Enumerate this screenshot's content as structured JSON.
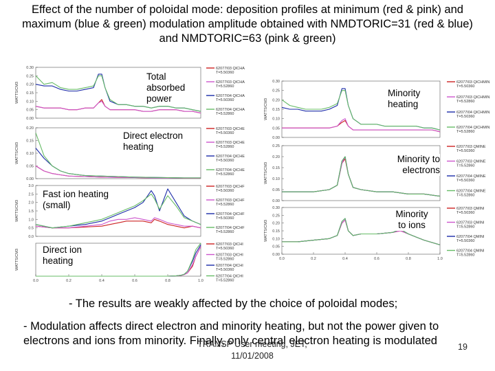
{
  "title": "Effect of the number of poloidal mode: deposition profiles at minimum (red & pink) and maximum (blue & green) modulation amplitude obtained with NMDTORIC=31 (red & blue) and NMDTORIC=63 (pink & green)",
  "bullets": {
    "first": "- The results are weakly affected by the choice of poloidal modes;",
    "second": "- Modulation affects direct electron and minority heating, but not the power given to electrons and ions from minority. Finally, only central electron heating is modulated"
  },
  "footer": {
    "line1": "TRANSP User meeting, JET,",
    "line2": "11/01/2008",
    "page": "19"
  },
  "colors": {
    "red": "#cc2222",
    "pink": "#cc55cc",
    "blue": "#1a2aa8",
    "green": "#66bb66"
  },
  "chart_data": [
    {
      "type": "line",
      "label": "Total absorbed power",
      "ylabel": "WATTS/CM3",
      "ylim": [
        0,
        0.3
      ],
      "yticks": [
        "0.30",
        "0.25",
        "0.20",
        "0.15",
        "0.10",
        "0.05",
        "0.00"
      ],
      "xlim": [
        0,
        1
      ],
      "legend": [
        {
          "name": "62077I03 QICHA",
          "t": "T=5.50360"
        },
        {
          "name": "62077I03 QICHA",
          "t": "T=5.52860"
        },
        {
          "name": "62077I04 QICHA",
          "t": "T=5.50360"
        },
        {
          "name": "62077I04 QICHA",
          "t": "T=5.52860"
        }
      ],
      "x": [
        0,
        0.05,
        0.1,
        0.15,
        0.2,
        0.25,
        0.3,
        0.35,
        0.38,
        0.4,
        0.42,
        0.45,
        0.5,
        0.55,
        0.6,
        0.65,
        0.7,
        0.75,
        0.8,
        0.85,
        0.9,
        0.95,
        1.0
      ],
      "series": [
        {
          "color": "red",
          "values": [
            0.07,
            0.06,
            0.06,
            0.06,
            0.05,
            0.05,
            0.06,
            0.06,
            0.09,
            0.11,
            0.07,
            0.05,
            0.05,
            0.05,
            0.05,
            0.04,
            0.04,
            0.05,
            0.05,
            0.05,
            0.04,
            0.04,
            0.03
          ]
        },
        {
          "color": "pink",
          "values": [
            0.07,
            0.06,
            0.06,
            0.06,
            0.05,
            0.05,
            0.06,
            0.06,
            0.09,
            0.1,
            0.07,
            0.05,
            0.05,
            0.05,
            0.05,
            0.04,
            0.04,
            0.05,
            0.05,
            0.05,
            0.04,
            0.04,
            0.03
          ]
        },
        {
          "color": "blue",
          "values": [
            0.2,
            0.19,
            0.19,
            0.17,
            0.16,
            0.16,
            0.17,
            0.18,
            0.26,
            0.26,
            0.18,
            0.1,
            0.08,
            0.08,
            0.07,
            0.07,
            0.06,
            0.07,
            0.07,
            0.06,
            0.06,
            0.05,
            0.04
          ]
        },
        {
          "color": "green",
          "values": [
            0.25,
            0.2,
            0.21,
            0.18,
            0.17,
            0.17,
            0.18,
            0.19,
            0.25,
            0.25,
            0.18,
            0.11,
            0.08,
            0.08,
            0.07,
            0.07,
            0.06,
            0.07,
            0.07,
            0.06,
            0.06,
            0.05,
            0.04
          ]
        }
      ]
    },
    {
      "type": "line",
      "label": "Direct electron heating",
      "ylabel": "WATTS/CM3",
      "ylim": [
        0,
        0.2
      ],
      "yticks": [
        "0.20",
        "0.15",
        "0.10",
        "0.05",
        "0.00"
      ],
      "xlim": [
        0,
        1
      ],
      "legend": [
        {
          "name": "62077I03 QICHE",
          "t": "T=5.50360"
        },
        {
          "name": "62077I03 QICHE",
          "t": "T=5.52860"
        },
        {
          "name": "62077I04 QICHE",
          "t": "T=5.50360"
        },
        {
          "name": "62077I04 QICHE",
          "t": "T=5.52860"
        }
      ],
      "x": [
        0,
        0.05,
        0.1,
        0.15,
        0.2,
        0.3,
        0.4,
        0.5,
        0.6,
        0.7,
        0.8,
        0.9,
        1.0
      ],
      "series": [
        {
          "color": "red",
          "values": [
            0.05,
            0.03,
            0.02,
            0.015,
            0.01,
            0.008,
            0.006,
            0.005,
            0.004,
            0.003,
            0.003,
            0.002,
            0.002
          ]
        },
        {
          "color": "pink",
          "values": [
            0.05,
            0.03,
            0.02,
            0.015,
            0.01,
            0.008,
            0.006,
            0.005,
            0.004,
            0.003,
            0.003,
            0.002,
            0.002
          ]
        },
        {
          "color": "blue",
          "values": [
            0.12,
            0.08,
            0.05,
            0.03,
            0.02,
            0.012,
            0.01,
            0.008,
            0.006,
            0.005,
            0.004,
            0.003,
            0.003
          ]
        },
        {
          "color": "green",
          "values": [
            0.18,
            0.09,
            0.05,
            0.03,
            0.02,
            0.012,
            0.01,
            0.008,
            0.006,
            0.005,
            0.004,
            0.003,
            0.003
          ]
        }
      ]
    },
    {
      "type": "line",
      "label": "Fast ion heating (small)",
      "ylabel": "WATTS/CM3",
      "ylim": [
        0,
        3.0
      ],
      "yticks": [
        "3.0",
        "2.5",
        "2.0",
        "1.5",
        "1.0",
        "0.5",
        "0.0"
      ],
      "xlim": [
        0,
        1
      ],
      "legend": [
        {
          "name": "62077I03 QICHF",
          "t": "T=5.50360"
        },
        {
          "name": "62077I03 QICHF",
          "t": "T=5.52860"
        },
        {
          "name": "62077I04 QICHF",
          "t": "T=5.50360"
        },
        {
          "name": "62077I04 QICHF",
          "t": "T=5.52860"
        }
      ],
      "x": [
        0,
        0.1,
        0.2,
        0.3,
        0.4,
        0.45,
        0.5,
        0.55,
        0.6,
        0.65,
        0.7,
        0.72,
        0.75,
        0.8,
        0.85,
        0.9,
        0.95,
        1.0
      ],
      "series": [
        {
          "color": "red",
          "values": [
            0.6,
            0.5,
            0.5,
            0.55,
            0.6,
            0.7,
            0.8,
            0.9,
            0.9,
            0.9,
            0.8,
            1.0,
            0.9,
            0.7,
            0.6,
            0.5,
            0.6,
            0.5
          ]
        },
        {
          "color": "pink",
          "values": [
            0.6,
            0.5,
            0.5,
            0.6,
            0.7,
            0.9,
            1.0,
            1.0,
            1.1,
            1.0,
            0.9,
            1.1,
            1.0,
            0.8,
            0.7,
            0.6,
            0.6,
            0.5
          ]
        },
        {
          "color": "blue",
          "values": [
            0.7,
            0.5,
            0.6,
            0.7,
            0.9,
            1.1,
            1.3,
            1.5,
            1.7,
            2.0,
            2.7,
            2.4,
            1.5,
            2.8,
            2.0,
            1.2,
            0.9,
            0.7
          ]
        },
        {
          "color": "green",
          "values": [
            0.7,
            0.5,
            0.6,
            0.8,
            1.0,
            1.2,
            1.4,
            1.6,
            1.8,
            2.1,
            2.5,
            2.2,
            1.6,
            2.4,
            1.8,
            1.1,
            0.9,
            0.7
          ]
        }
      ]
    },
    {
      "type": "line",
      "label": "Direct ion heating",
      "ylabel": "WATTS/CM3",
      "xlim": [
        0,
        1
      ],
      "xticks": [
        "0.0",
        "0.2",
        "0.4",
        "0.6",
        "0.8",
        "1.0"
      ],
      "legend": [
        {
          "name": "62077I03 QICHI",
          "t": "T=5.50360"
        },
        {
          "name": "62077I03 QICHI",
          "t": "T=5.52860"
        },
        {
          "name": "62077I04 QICHI",
          "t": "T=5.50360"
        },
        {
          "name": "62077I04 QICHI",
          "t": "T=5.52860"
        }
      ],
      "x": [
        0,
        0.2,
        0.4,
        0.6,
        0.7,
        0.8,
        0.85,
        0.88,
        0.9,
        0.92,
        0.95,
        0.97,
        1.0
      ],
      "series": [
        {
          "color": "red",
          "values": [
            0,
            0,
            0,
            0,
            0,
            0,
            0.01,
            0.02,
            0.05,
            0.1,
            0.3,
            0.6,
            0.9
          ]
        },
        {
          "color": "pink",
          "values": [
            0,
            0,
            0,
            0,
            0,
            0,
            0.01,
            0.02,
            0.05,
            0.1,
            0.35,
            0.6,
            0.9
          ]
        },
        {
          "color": "blue",
          "values": [
            0,
            0,
            0,
            0,
            0,
            0,
            0.01,
            0.03,
            0.06,
            0.15,
            0.45,
            0.7,
            0.95
          ]
        },
        {
          "color": "green",
          "values": [
            0,
            0,
            0,
            0,
            0,
            0,
            0.01,
            0.03,
            0.06,
            0.15,
            0.5,
            0.8,
            1.0
          ]
        }
      ]
    },
    {
      "type": "line",
      "label": "Minority heating",
      "ylabel": "WATTS/CM3",
      "ylim": [
        0,
        0.3
      ],
      "yticks": [
        "0.30",
        "0.25",
        "0.20",
        "0.15",
        "0.10",
        "0.05",
        "0.00"
      ],
      "xlim": [
        0,
        1
      ],
      "legend": [
        {
          "name": "62077I03 QICHMIN",
          "t": "T=5.50360"
        },
        {
          "name": "62077I03 QICHMIN",
          "t": "T=5.52860"
        },
        {
          "name": "62077I04 QICHMIN",
          "t": "T=5.50360"
        },
        {
          "name": "62077I04 QICHMIN",
          "t": "T=5.52860"
        }
      ],
      "x": [
        0,
        0.05,
        0.1,
        0.15,
        0.2,
        0.25,
        0.3,
        0.35,
        0.38,
        0.4,
        0.42,
        0.45,
        0.5,
        0.55,
        0.6,
        0.65,
        0.7,
        0.75,
        0.8,
        0.85,
        0.9,
        0.95,
        1.0
      ],
      "series": [
        {
          "color": "red",
          "values": [
            0.05,
            0.05,
            0.05,
            0.05,
            0.05,
            0.05,
            0.05,
            0.06,
            0.08,
            0.09,
            0.06,
            0.04,
            0.04,
            0.04,
            0.04,
            0.04,
            0.04,
            0.04,
            0.04,
            0.04,
            0.04,
            0.04,
            0.03
          ]
        },
        {
          "color": "pink",
          "values": [
            0.05,
            0.05,
            0.05,
            0.05,
            0.05,
            0.05,
            0.05,
            0.06,
            0.09,
            0.1,
            0.06,
            0.04,
            0.04,
            0.04,
            0.04,
            0.04,
            0.04,
            0.04,
            0.04,
            0.04,
            0.04,
            0.04,
            0.03
          ]
        },
        {
          "color": "blue",
          "values": [
            0.16,
            0.15,
            0.15,
            0.14,
            0.14,
            0.14,
            0.15,
            0.17,
            0.26,
            0.26,
            0.17,
            0.1,
            0.07,
            0.07,
            0.07,
            0.06,
            0.06,
            0.06,
            0.06,
            0.06,
            0.05,
            0.05,
            0.04
          ]
        },
        {
          "color": "green",
          "values": [
            0.2,
            0.17,
            0.16,
            0.15,
            0.15,
            0.15,
            0.16,
            0.18,
            0.25,
            0.25,
            0.17,
            0.1,
            0.07,
            0.07,
            0.07,
            0.06,
            0.06,
            0.06,
            0.06,
            0.06,
            0.05,
            0.05,
            0.04
          ]
        }
      ]
    },
    {
      "type": "line",
      "label": "Minority to electrons",
      "ylabel": "WATTS/CM3",
      "ylim": [
        0,
        0.25
      ],
      "yticks": [
        "0.25",
        "0.20",
        "0.15",
        "0.10",
        "0.05",
        "0.00"
      ],
      "xlim": [
        0,
        1
      ],
      "legend": [
        {
          "name": "62077I03 QMINE",
          "t": "T=5.50360"
        },
        {
          "name": "62077I03 QMINE",
          "t": "T=5.52860"
        },
        {
          "name": "62077I04 QMINE",
          "t": "T=5.50360"
        },
        {
          "name": "62077I04 QMINE",
          "t": "T=5.52860"
        }
      ],
      "x": [
        0,
        0.1,
        0.2,
        0.3,
        0.35,
        0.38,
        0.4,
        0.42,
        0.45,
        0.5,
        0.6,
        0.7,
        0.8,
        0.9,
        1.0
      ],
      "series": [
        {
          "color": "red",
          "values": [
            0.04,
            0.04,
            0.04,
            0.05,
            0.07,
            0.17,
            0.19,
            0.12,
            0.06,
            0.05,
            0.04,
            0.04,
            0.03,
            0.03,
            0.02
          ]
        },
        {
          "color": "pink",
          "values": [
            0.04,
            0.04,
            0.04,
            0.05,
            0.07,
            0.17,
            0.2,
            0.12,
            0.06,
            0.05,
            0.04,
            0.04,
            0.03,
            0.03,
            0.02
          ]
        },
        {
          "color": "blue",
          "values": [
            0.04,
            0.04,
            0.04,
            0.05,
            0.07,
            0.18,
            0.2,
            0.12,
            0.06,
            0.05,
            0.04,
            0.04,
            0.03,
            0.03,
            0.02
          ]
        },
        {
          "color": "green",
          "values": [
            0.04,
            0.04,
            0.04,
            0.05,
            0.07,
            0.18,
            0.2,
            0.12,
            0.06,
            0.05,
            0.04,
            0.04,
            0.03,
            0.03,
            0.02
          ]
        }
      ]
    },
    {
      "type": "line",
      "label": "Minority to ions",
      "ylabel": "WATTS/CM3",
      "ylim": [
        0,
        0.3
      ],
      "yticks": [
        "0.30",
        "0.25",
        "0.20",
        "0.15",
        "0.10",
        "0.05",
        "0.00"
      ],
      "xlim": [
        0,
        1
      ],
      "xticks": [
        "0.0",
        "0.2",
        "0.4",
        "0.6",
        "0.8",
        "1.0"
      ],
      "legend": [
        {
          "name": "62077I03 QMINI",
          "t": "T=5.50360"
        },
        {
          "name": "62077I03 QMINI",
          "t": "T=5.52860"
        },
        {
          "name": "62077I04 QMINI",
          "t": "T=5.50360"
        },
        {
          "name": "62077I04 QMINI",
          "t": "T=5.52860"
        }
      ],
      "x": [
        0,
        0.1,
        0.2,
        0.3,
        0.35,
        0.38,
        0.4,
        0.42,
        0.45,
        0.5,
        0.6,
        0.7,
        0.75,
        0.8,
        0.85,
        0.9,
        1.0
      ],
      "series": [
        {
          "color": "red",
          "values": [
            0.08,
            0.08,
            0.09,
            0.1,
            0.12,
            0.2,
            0.22,
            0.15,
            0.12,
            0.13,
            0.13,
            0.14,
            0.15,
            0.13,
            0.11,
            0.09,
            0.06
          ]
        },
        {
          "color": "pink",
          "values": [
            0.08,
            0.08,
            0.09,
            0.1,
            0.12,
            0.2,
            0.22,
            0.15,
            0.12,
            0.13,
            0.13,
            0.14,
            0.15,
            0.13,
            0.11,
            0.09,
            0.06
          ]
        },
        {
          "color": "blue",
          "values": [
            0.08,
            0.08,
            0.09,
            0.1,
            0.12,
            0.21,
            0.23,
            0.15,
            0.12,
            0.13,
            0.13,
            0.14,
            0.16,
            0.13,
            0.11,
            0.09,
            0.06
          ]
        },
        {
          "color": "green",
          "values": [
            0.08,
            0.08,
            0.09,
            0.1,
            0.12,
            0.21,
            0.23,
            0.15,
            0.12,
            0.13,
            0.13,
            0.14,
            0.16,
            0.13,
            0.11,
            0.09,
            0.06
          ]
        }
      ]
    }
  ]
}
